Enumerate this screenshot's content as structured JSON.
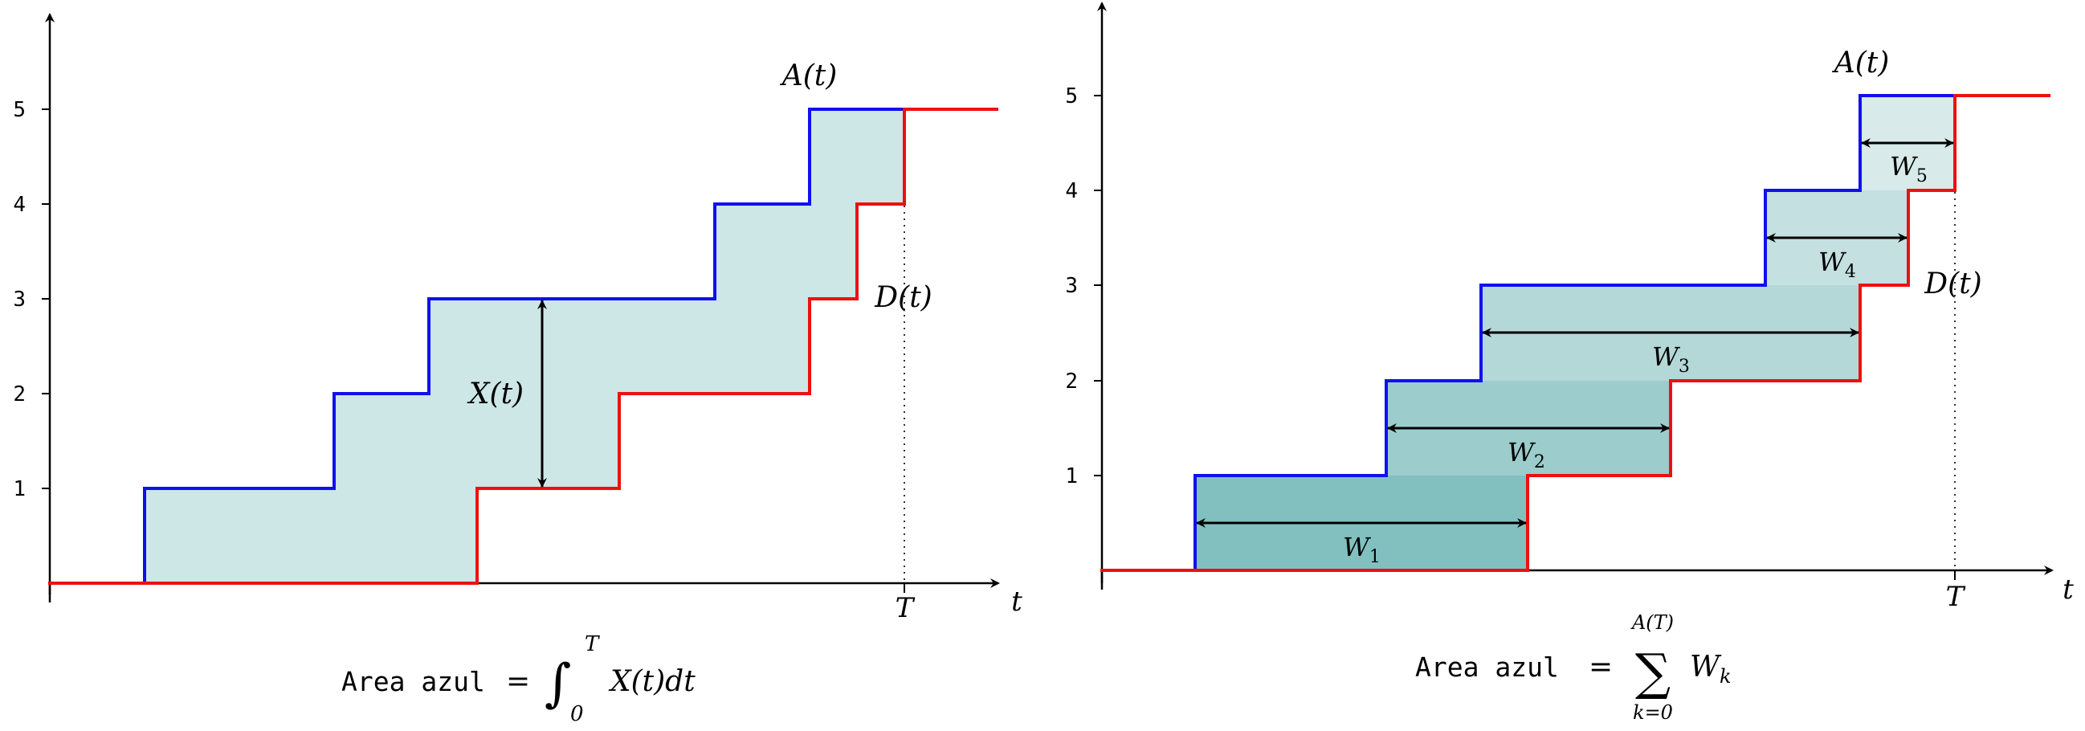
{
  "colors": {
    "arrivals": "#1010ee",
    "departures": "#ee1010",
    "area_light": "#cde6e6",
    "area_w1": "#82c0c0",
    "area_w2": "#9ccccc",
    "area_w3": "#b4d8d8",
    "area_w4": "#c4e0e0",
    "area_w5": "#d8eaea"
  },
  "left_panel": {
    "yticks": [
      "1",
      "2",
      "3",
      "4",
      "5"
    ],
    "t_axis_label": "t",
    "T_label": "T",
    "A_label": "A(t)",
    "D_label": "D(t)",
    "X_label": "X(t)",
    "formula": {
      "word": "Area azul",
      "equals": "=",
      "int_upper": "T",
      "int_lower": "0",
      "integrand": "X(t)dt"
    }
  },
  "right_panel": {
    "yticks": [
      "1",
      "2",
      "3",
      "4",
      "5"
    ],
    "t_axis_label": "t",
    "T_label": "T",
    "A_label": "A(t)",
    "D_label": "D(t)",
    "W_labels": [
      {
        "base": "W",
        "sub": "1"
      },
      {
        "base": "W",
        "sub": "2"
      },
      {
        "base": "W",
        "sub": "3"
      },
      {
        "base": "W",
        "sub": "4"
      },
      {
        "base": "W",
        "sub": "5"
      }
    ],
    "formula": {
      "word": "Area azul",
      "equals": "=",
      "sum_upper": "A(T)",
      "sum_lower": "k=0",
      "summand_base": "W",
      "summand_sub": "k"
    }
  }
}
